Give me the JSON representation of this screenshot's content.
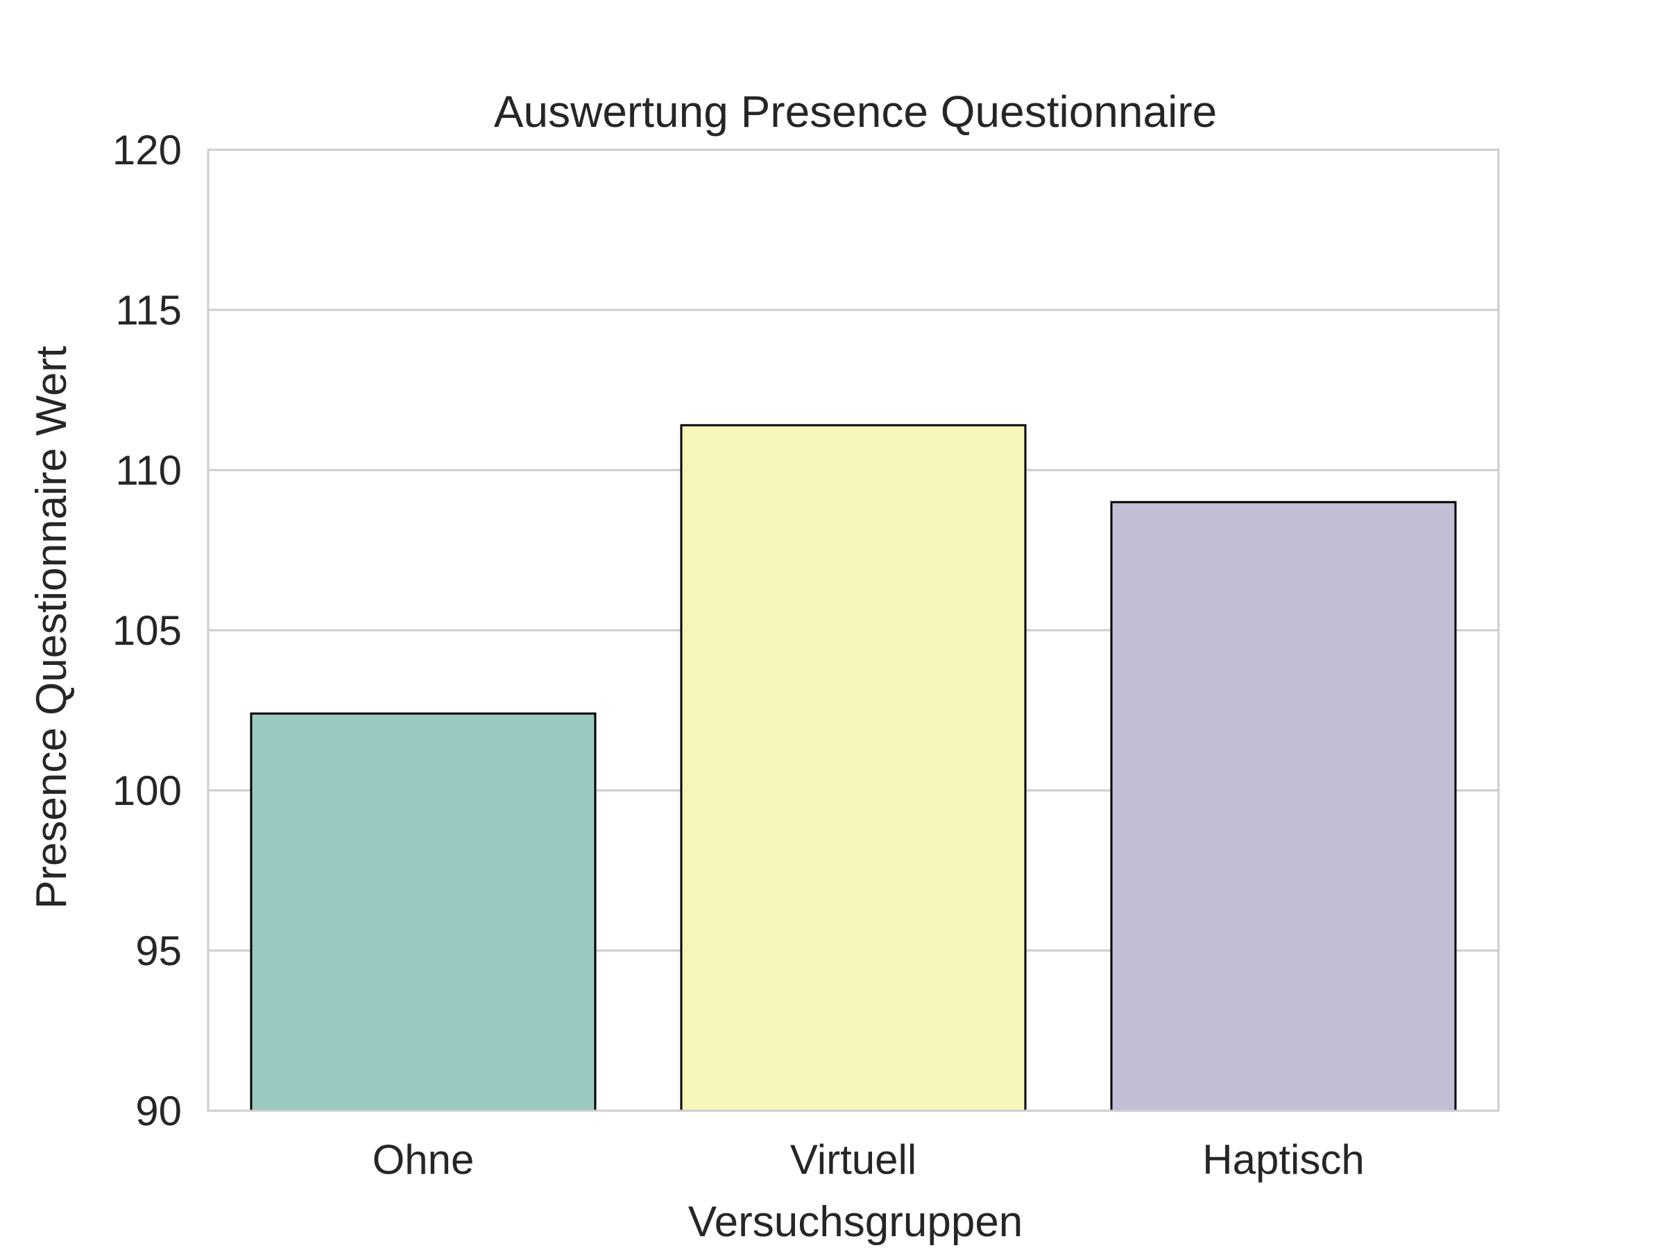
{
  "chart_data": {
    "type": "bar",
    "title": "Auswertung Presence Questionnaire",
    "xlabel": "Versuchsgruppen",
    "ylabel": "Presence Questionnaire Wert",
    "categories": [
      "Ohne",
      "Virtuell",
      "Haptisch"
    ],
    "values": [
      102.4,
      111.4,
      109.0
    ],
    "colors": [
      "#99c9c1",
      "#f6f6bb",
      "#c2bed5"
    ],
    "ylim": [
      90,
      120
    ],
    "yticks": [
      90,
      95,
      100,
      105,
      110,
      115,
      120
    ],
    "grid": true,
    "legend": "none"
  }
}
